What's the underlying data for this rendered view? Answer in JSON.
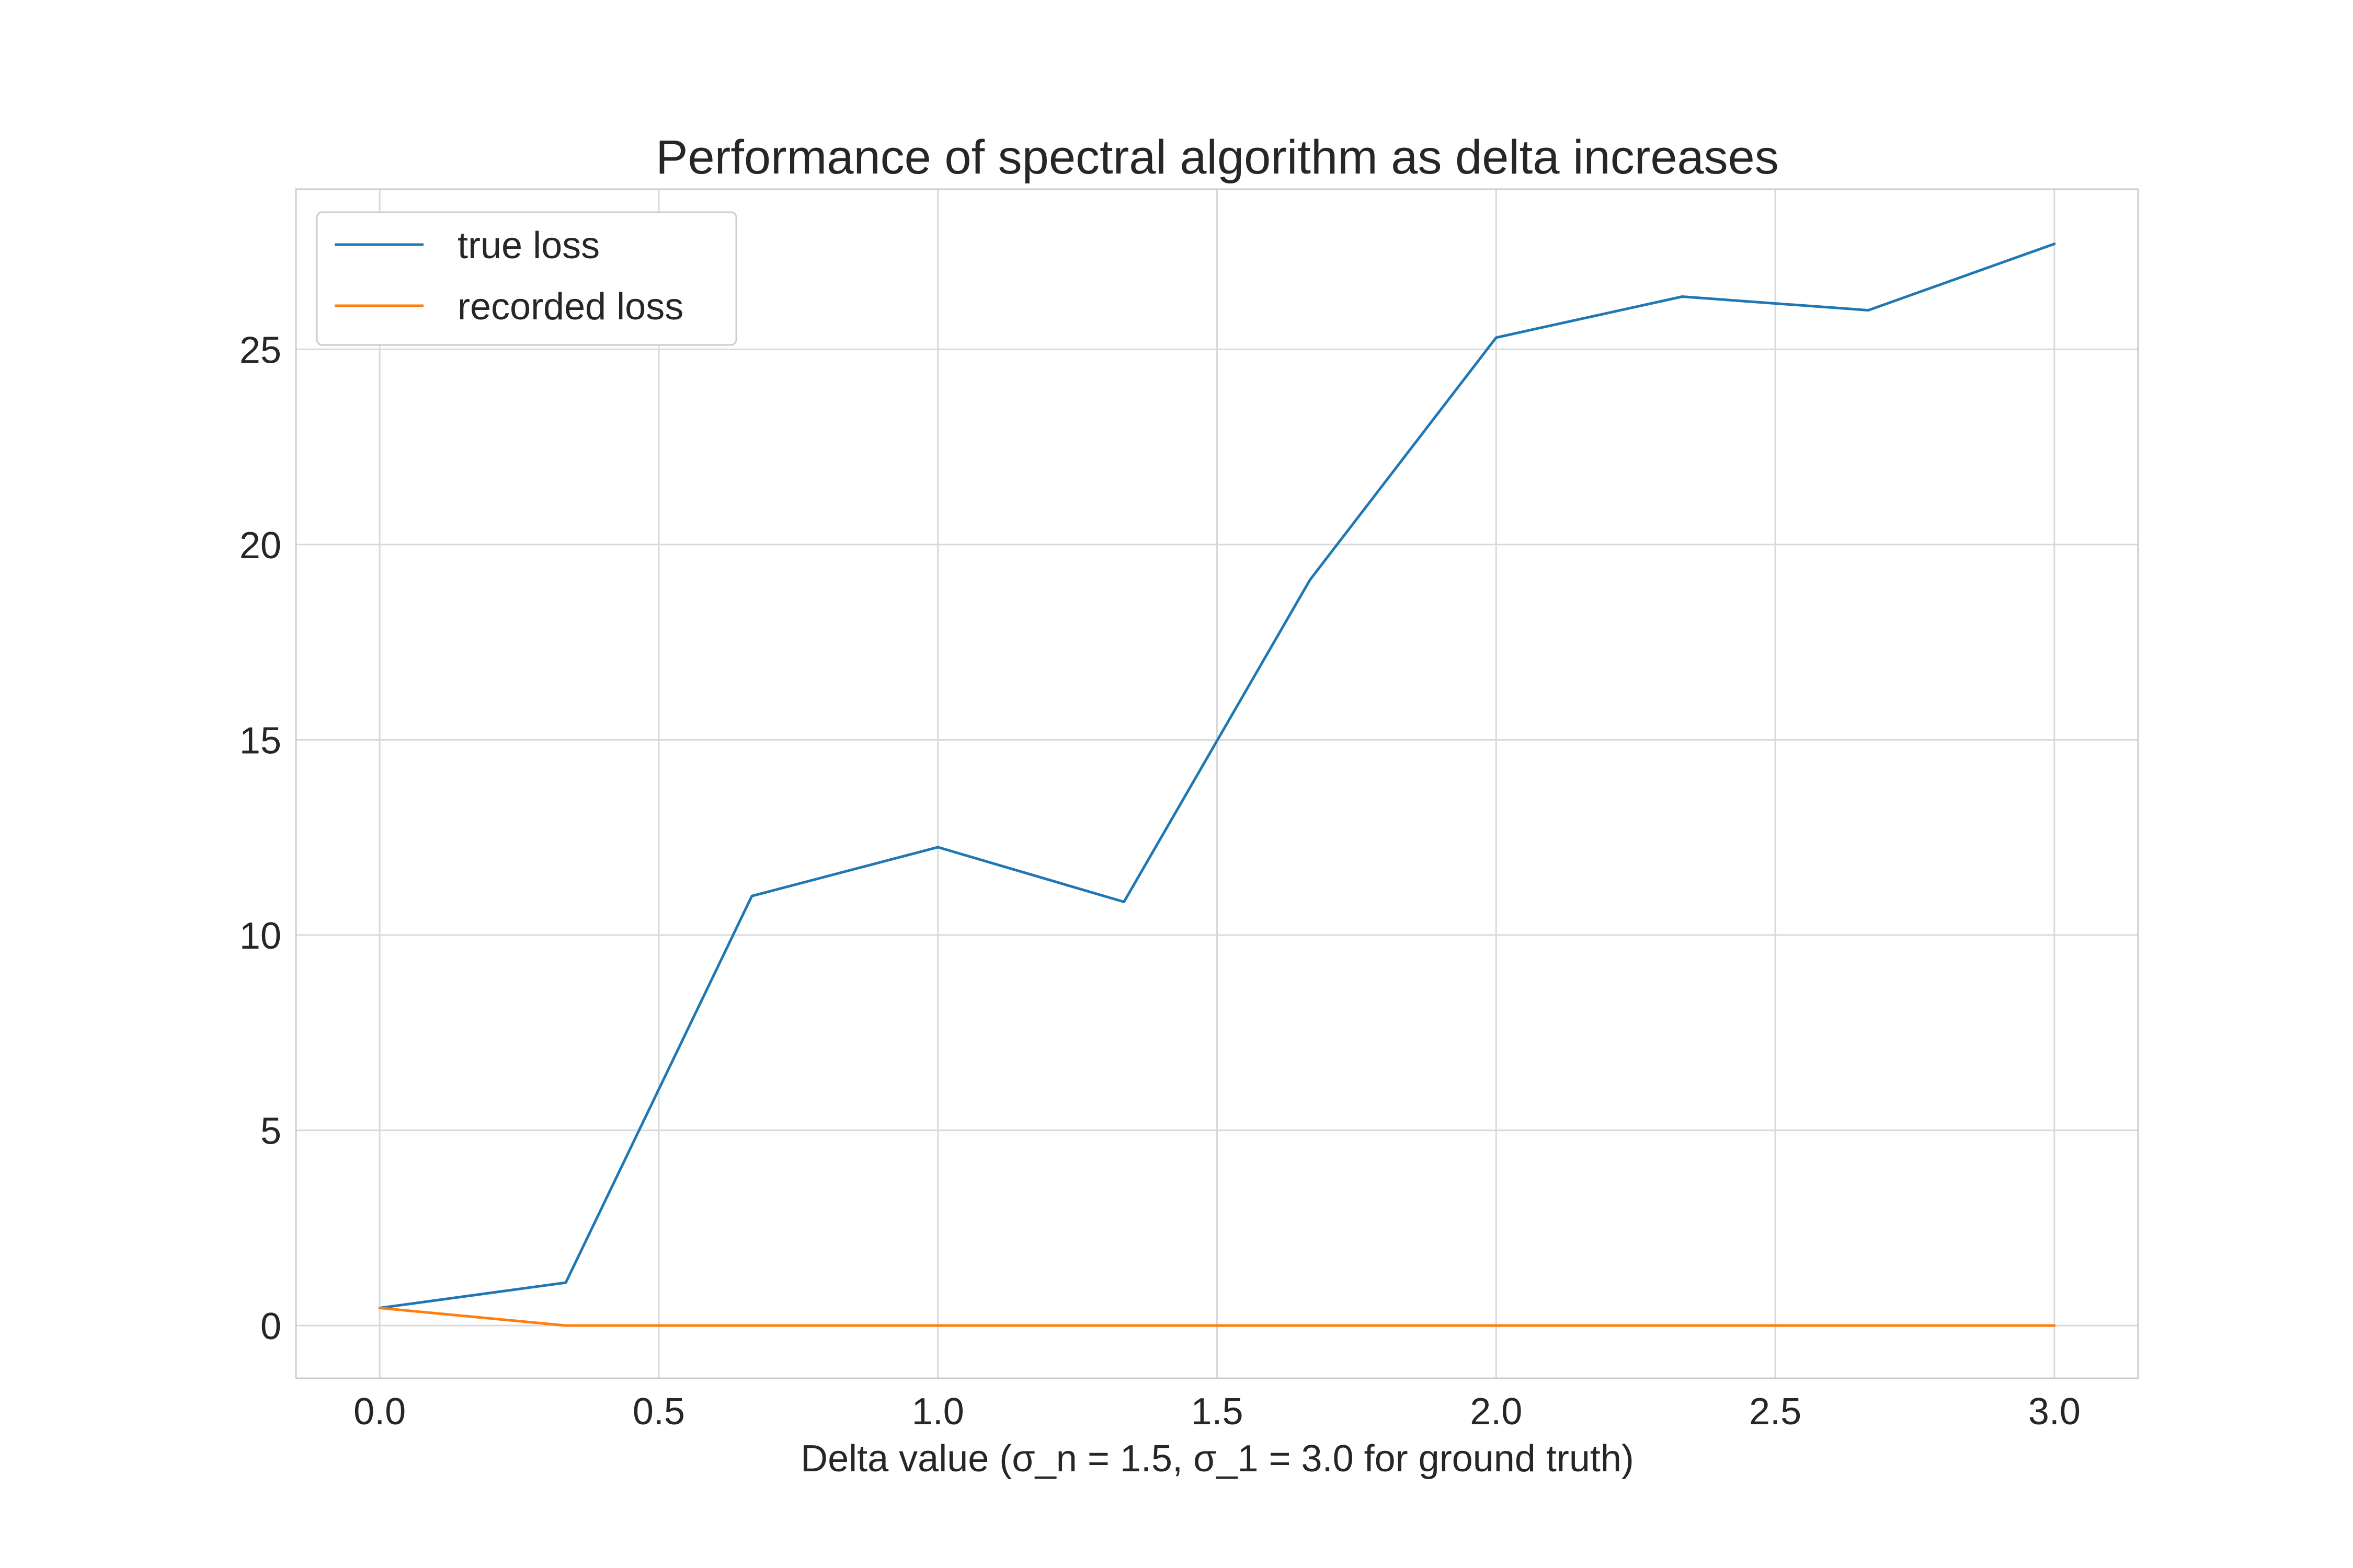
{
  "chart_data": {
    "type": "line",
    "title": "Performance of spectral algorithm as delta increases",
    "xlabel": "Delta value (σ_n = 1.5, σ_1 = 3.0 for ground truth)",
    "ylabel": "",
    "x": [
      0.0,
      0.3333,
      0.6667,
      1.0,
      1.3333,
      1.6667,
      2.0,
      2.3333,
      2.6667,
      3.0
    ],
    "series": [
      {
        "name": "true loss",
        "color": "#1f77b4",
        "values": [
          0.45,
          1.1,
          11.0,
          12.25,
          10.85,
          19.1,
          25.3,
          26.35,
          26.0,
          27.7
        ]
      },
      {
        "name": "recorded loss",
        "color": "#ff7f0e",
        "values": [
          0.45,
          0.0,
          0.0,
          0.0,
          0.0,
          0.0,
          0.0,
          0.0,
          0.0,
          0.0
        ]
      }
    ],
    "xlim": [
      -0.15,
      3.15
    ],
    "ylim": [
      -1.35,
      29.1
    ],
    "xticks": [
      0.0,
      0.5,
      1.0,
      1.5,
      2.0,
      2.5,
      3.0
    ],
    "xtick_labels": [
      "0.0",
      "0.5",
      "1.0",
      "1.5",
      "2.0",
      "2.5",
      "3.0"
    ],
    "yticks": [
      0,
      5,
      10,
      15,
      20,
      25
    ],
    "ytick_labels": [
      "0",
      "5",
      "10",
      "15",
      "20",
      "25"
    ],
    "grid": true,
    "legend_position": "top-left",
    "style_colors": {
      "grid": "#d9d9d9",
      "frame": "#cccccc",
      "text": "#262626"
    }
  }
}
